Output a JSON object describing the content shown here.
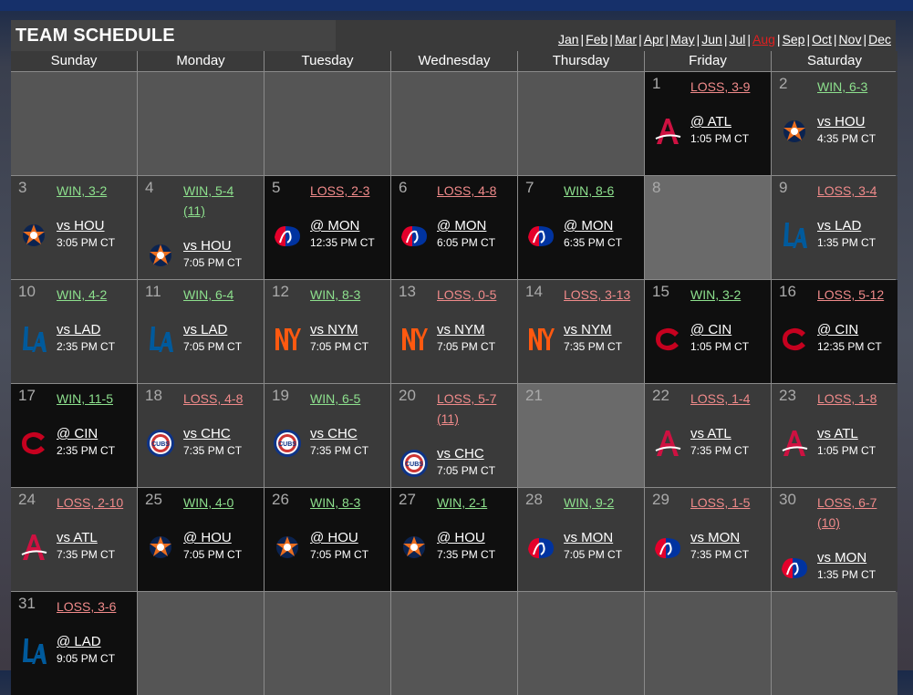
{
  "title": "TEAM SCHEDULE",
  "months": [
    {
      "label": "Jan",
      "active": false
    },
    {
      "label": "Feb",
      "active": false
    },
    {
      "label": "Mar",
      "active": false
    },
    {
      "label": "Apr",
      "active": false
    },
    {
      "label": "May",
      "active": false
    },
    {
      "label": "Jun",
      "active": false
    },
    {
      "label": "Jul",
      "active": false
    },
    {
      "label": "Aug",
      "active": true
    },
    {
      "label": "Sep",
      "active": false
    },
    {
      "label": "Oct",
      "active": false
    },
    {
      "label": "Nov",
      "active": false
    },
    {
      "label": "Dec",
      "active": false
    }
  ],
  "weekdays": [
    "Sunday",
    "Monday",
    "Tuesday",
    "Wednesday",
    "Thursday",
    "Friday",
    "Saturday"
  ],
  "colors": {
    "win": "#8de08d",
    "loss": "#f08a8a",
    "active_month": "#e02020"
  },
  "days": [
    {
      "day": "1",
      "result": "LOSS, 3-9",
      "outcome": "loss",
      "opponent": "@ ATL",
      "time": "1:05 PM CT",
      "team": "atl",
      "loc": "away"
    },
    {
      "day": "2",
      "result": "WIN, 6-3",
      "outcome": "win",
      "opponent": "vs HOU",
      "time": "4:35 PM CT",
      "team": "hou",
      "loc": "home"
    },
    {
      "day": "3",
      "result": "WIN, 3-2",
      "outcome": "win",
      "opponent": "vs HOU",
      "time": "3:05 PM CT",
      "team": "hou",
      "loc": "home"
    },
    {
      "day": "4",
      "result": "WIN, 5-4 (11)",
      "outcome": "win",
      "opponent": "vs HOU",
      "time": "7:05 PM CT",
      "team": "hou",
      "loc": "home",
      "extra": true
    },
    {
      "day": "5",
      "result": "LOSS, 2-3",
      "outcome": "loss",
      "opponent": "@ MON",
      "time": "12:35 PM CT",
      "team": "mon",
      "loc": "away"
    },
    {
      "day": "6",
      "result": "LOSS, 4-8",
      "outcome": "loss",
      "opponent": "@ MON",
      "time": "6:05 PM CT",
      "team": "mon",
      "loc": "away"
    },
    {
      "day": "7",
      "result": "WIN, 8-6",
      "outcome": "win",
      "opponent": "@ MON",
      "time": "6:35 PM CT",
      "team": "mon",
      "loc": "away"
    },
    {
      "day": "8",
      "off": true
    },
    {
      "day": "9",
      "result": "LOSS, 3-4",
      "outcome": "loss",
      "opponent": "vs LAD",
      "time": "1:35 PM CT",
      "team": "lad",
      "loc": "home"
    },
    {
      "day": "10",
      "result": "WIN, 4-2",
      "outcome": "win",
      "opponent": "vs LAD",
      "time": "2:35 PM CT",
      "team": "lad",
      "loc": "home"
    },
    {
      "day": "11",
      "result": "WIN, 6-4",
      "outcome": "win",
      "opponent": "vs LAD",
      "time": "7:05 PM CT",
      "team": "lad",
      "loc": "home"
    },
    {
      "day": "12",
      "result": "WIN, 8-3",
      "outcome": "win",
      "opponent": "vs NYM",
      "time": "7:05 PM CT",
      "team": "nym",
      "loc": "home"
    },
    {
      "day": "13",
      "result": "LOSS, 0-5",
      "outcome": "loss",
      "opponent": "vs NYM",
      "time": "7:05 PM CT",
      "team": "nym",
      "loc": "home"
    },
    {
      "day": "14",
      "result": "LOSS, 3-13",
      "outcome": "loss",
      "opponent": "vs NYM",
      "time": "7:35 PM CT",
      "team": "nym",
      "loc": "home"
    },
    {
      "day": "15",
      "result": "WIN, 3-2",
      "outcome": "win",
      "opponent": "@ CIN",
      "time": "1:05 PM CT",
      "team": "cin",
      "loc": "away"
    },
    {
      "day": "16",
      "result": "LOSS, 5-12",
      "outcome": "loss",
      "opponent": "@ CIN",
      "time": "12:35 PM CT",
      "team": "cin",
      "loc": "away"
    },
    {
      "day": "17",
      "result": "WIN, 11-5",
      "outcome": "win",
      "opponent": "@ CIN",
      "time": "2:35 PM CT",
      "team": "cin",
      "loc": "away"
    },
    {
      "day": "18",
      "result": "LOSS, 4-8",
      "outcome": "loss",
      "opponent": "vs CHC",
      "time": "7:35 PM CT",
      "team": "chc",
      "loc": "home"
    },
    {
      "day": "19",
      "result": "WIN, 6-5",
      "outcome": "win",
      "opponent": "vs CHC",
      "time": "7:35 PM CT",
      "team": "chc",
      "loc": "home"
    },
    {
      "day": "20",
      "result": "LOSS, 5-7 (11)",
      "outcome": "loss",
      "opponent": "vs CHC",
      "time": "7:05 PM CT",
      "team": "chc",
      "loc": "home",
      "extra": true
    },
    {
      "day": "21",
      "off": true
    },
    {
      "day": "22",
      "result": "LOSS, 1-4",
      "outcome": "loss",
      "opponent": "vs ATL",
      "time": "7:35 PM CT",
      "team": "atl",
      "loc": "home"
    },
    {
      "day": "23",
      "result": "LOSS, 1-8",
      "outcome": "loss",
      "opponent": "vs ATL",
      "time": "1:05 PM CT",
      "team": "atl",
      "loc": "home"
    },
    {
      "day": "24",
      "result": "LOSS, 2-10",
      "outcome": "loss",
      "opponent": "vs ATL",
      "time": "7:35 PM CT",
      "team": "atl",
      "loc": "home"
    },
    {
      "day": "25",
      "result": "WIN, 4-0",
      "outcome": "win",
      "opponent": "@ HOU",
      "time": "7:05 PM CT",
      "team": "hou",
      "loc": "away"
    },
    {
      "day": "26",
      "result": "WIN, 8-3",
      "outcome": "win",
      "opponent": "@ HOU",
      "time": "7:05 PM CT",
      "team": "hou",
      "loc": "away"
    },
    {
      "day": "27",
      "result": "WIN, 2-1",
      "outcome": "win",
      "opponent": "@ HOU",
      "time": "7:35 PM CT",
      "team": "hou",
      "loc": "away"
    },
    {
      "day": "28",
      "result": "WIN, 9-2",
      "outcome": "win",
      "opponent": "vs MON",
      "time": "7:05 PM CT",
      "team": "mon",
      "loc": "home"
    },
    {
      "day": "29",
      "result": "LOSS, 1-5",
      "outcome": "loss",
      "opponent": "vs MON",
      "time": "7:35 PM CT",
      "team": "mon",
      "loc": "home"
    },
    {
      "day": "30",
      "result": "LOSS, 6-7 (10)",
      "outcome": "loss",
      "opponent": "vs MON",
      "time": "1:35 PM CT",
      "team": "mon",
      "loc": "home",
      "extra": true
    },
    {
      "day": "31",
      "result": "LOSS, 3-6",
      "outcome": "loss",
      "opponent": "@ LAD",
      "time": "9:05 PM CT",
      "team": "lad",
      "loc": "away"
    }
  ],
  "leading_blanks": 5,
  "trailing_blanks": 6,
  "logo_names": {
    "atl": "braves-logo-icon",
    "hou": "astros-logo-icon",
    "mon": "expos-logo-icon",
    "lad": "dodgers-logo-icon",
    "nym": "mets-logo-icon",
    "cin": "reds-logo-icon",
    "chc": "cubs-logo-icon"
  },
  "logo_text": {
    "chc": "CUBS"
  }
}
